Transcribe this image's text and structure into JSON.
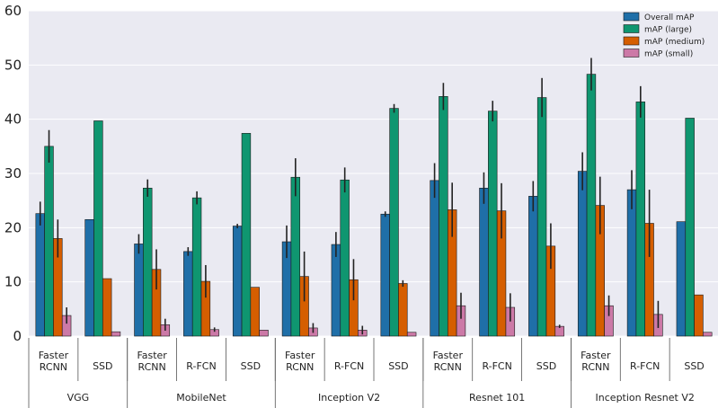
{
  "chart_data": {
    "type": "bar",
    "ylim": [
      0,
      60
    ],
    "yticks": [
      0,
      10,
      20,
      30,
      40,
      50,
      60
    ],
    "grid": true,
    "legend_position": "top-right",
    "colors": {
      "background": "#eaeaf2",
      "grid": "#ffffff",
      "Overall mAP": "#1f6fa8",
      "mAP (large)": "#0f9670",
      "mAP (medium)": "#d55e00",
      "mAP (small)": "#cc79a7",
      "errorbar": "#222222"
    },
    "series_names": [
      "Overall mAP",
      "mAP (large)",
      "mAP (medium)",
      "mAP (small)"
    ],
    "groups": [
      {
        "name": "VGG",
        "items": [
          {
            "label": [
              "Faster",
              "RCNN"
            ],
            "values": [
              22.6,
              35.0,
              18.0,
              3.8
            ],
            "errors": [
              2.2,
              3.0,
              3.5,
              1.5
            ]
          },
          {
            "label": [
              "SSD"
            ],
            "values": [
              21.5,
              39.7,
              10.6,
              0.8
            ],
            "errors": [
              0,
              0,
              0,
              0
            ]
          }
        ]
      },
      {
        "name": "MobileNet",
        "items": [
          {
            "label": [
              "Faster",
              "RCNN"
            ],
            "values": [
              17.0,
              27.3,
              12.3,
              2.1
            ],
            "errors": [
              1.8,
              1.6,
              3.7,
              1.1
            ]
          },
          {
            "label": [
              "R-FCN"
            ],
            "values": [
              15.6,
              25.5,
              10.1,
              1.2
            ],
            "errors": [
              0.8,
              1.2,
              3.0,
              0.4
            ]
          },
          {
            "label": [
              "SSD"
            ],
            "values": [
              20.3,
              37.4,
              9.0,
              1.1
            ],
            "errors": [
              0.4,
              0,
              0,
              0
            ]
          }
        ]
      },
      {
        "name": "Inception V2",
        "items": [
          {
            "label": [
              "Faster",
              "RCNN"
            ],
            "values": [
              17.4,
              29.3,
              11.0,
              1.5
            ],
            "errors": [
              3.0,
              3.5,
              4.6,
              0.9
            ]
          },
          {
            "label": [
              "R-FCN"
            ],
            "values": [
              16.9,
              28.8,
              10.4,
              1.1
            ],
            "errors": [
              2.3,
              2.3,
              3.8,
              0.8
            ]
          },
          {
            "label": [
              "SSD"
            ],
            "values": [
              22.5,
              42.0,
              9.7,
              0.7
            ],
            "errors": [
              0.5,
              0.8,
              0.6,
              0
            ]
          }
        ]
      },
      {
        "name": "Resnet 101",
        "items": [
          {
            "label": [
              "Faster",
              "RCNN"
            ],
            "values": [
              28.7,
              44.2,
              23.3,
              5.6
            ],
            "errors": [
              3.2,
              2.5,
              5.0,
              2.4
            ]
          },
          {
            "label": [
              "R-FCN"
            ],
            "values": [
              27.3,
              41.5,
              23.1,
              5.3
            ],
            "errors": [
              2.9,
              1.9,
              5.1,
              2.6
            ]
          },
          {
            "label": [
              "SSD"
            ],
            "values": [
              25.8,
              44.0,
              16.6,
              1.8
            ],
            "errors": [
              2.8,
              3.6,
              4.2,
              0.3
            ]
          }
        ]
      },
      {
        "name": "Inception Resnet V2",
        "items": [
          {
            "label": [
              "Faster",
              "RCNN"
            ],
            "values": [
              30.4,
              48.3,
              24.1,
              5.6
            ],
            "errors": [
              3.5,
              3.0,
              5.3,
              1.9
            ]
          },
          {
            "label": [
              "R-FCN"
            ],
            "values": [
              27.0,
              43.2,
              20.8,
              4.0
            ],
            "errors": [
              3.6,
              2.9,
              6.2,
              2.5
            ]
          },
          {
            "label": [
              "SSD"
            ],
            "values": [
              21.1,
              40.2,
              7.6,
              0.7
            ],
            "errors": [
              0,
              0,
              0,
              0
            ]
          }
        ]
      }
    ]
  }
}
